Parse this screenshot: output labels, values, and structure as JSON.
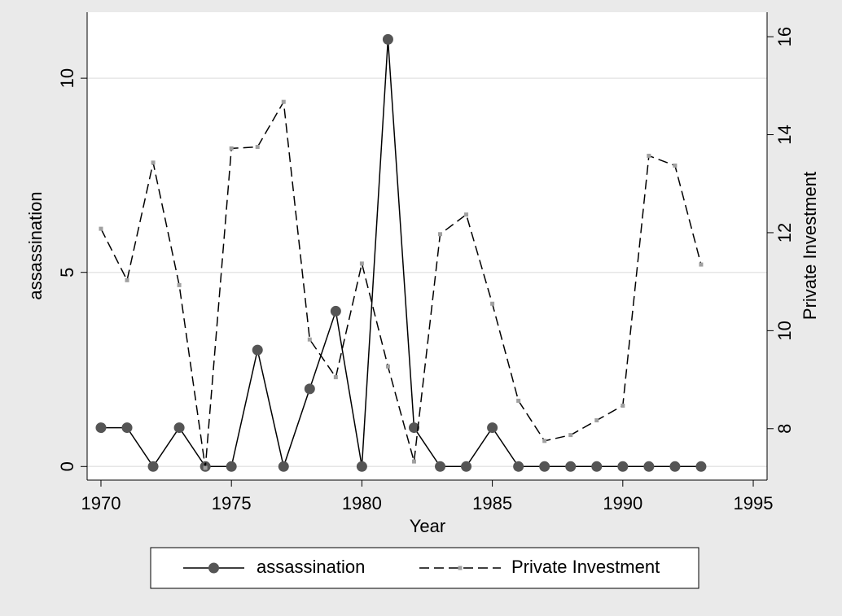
{
  "chart_data": {
    "type": "line",
    "xlabel": "Year",
    "ylabel": "assassination",
    "y2label": "Private Investment",
    "x": [
      1970,
      1971,
      1972,
      1973,
      1974,
      1975,
      1976,
      1977,
      1978,
      1979,
      1980,
      1981,
      1982,
      1983,
      1984,
      1985,
      1986,
      1987,
      1988,
      1989,
      1990,
      1991,
      1992,
      1993
    ],
    "series": [
      {
        "name": "assassination",
        "color": "#555555",
        "line": "solid",
        "marker": "circle",
        "values": [
          1,
          1,
          0,
          1,
          0,
          0,
          3,
          0,
          2,
          4,
          0,
          11,
          1,
          0,
          0,
          1,
          0,
          0,
          0,
          0,
          0,
          0,
          0,
          0
        ]
      },
      {
        "name": "Private Investment",
        "color": "#a0a0a0",
        "line": "dashed",
        "marker": "square",
        "axis": "y2",
        "values": [
          12.08,
          11.03,
          13.43,
          10.93,
          7.2,
          13.72,
          13.75,
          14.67,
          9.82,
          9.05,
          11.37,
          9.27,
          7.33,
          11.97,
          12.37,
          10.55,
          8.57,
          7.75,
          7.87,
          8.17,
          8.47,
          13.57,
          13.37,
          11.35
        ]
      }
    ],
    "xlim": [
      1969.47,
      1995.53
    ],
    "xticks": [
      1970,
      1975,
      1980,
      1985,
      1990,
      1995
    ],
    "ylim": [
      -0.35,
      11.7
    ],
    "yticks": [
      0,
      5,
      10
    ],
    "y2lim": [
      6.95,
      16.5
    ],
    "y2ticks": [
      8,
      10,
      12,
      14,
      16
    ],
    "grid": true,
    "legend": "bottom"
  }
}
